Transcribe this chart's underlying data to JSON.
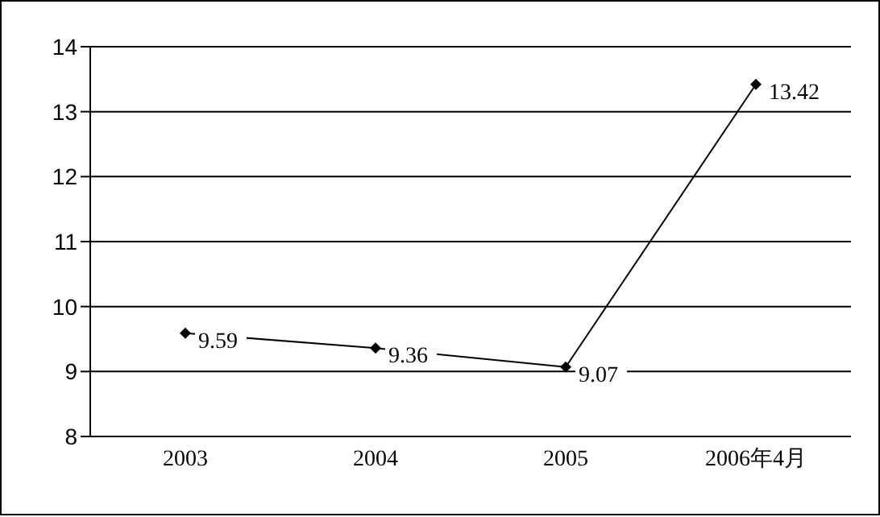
{
  "chart_data": {
    "type": "line",
    "categories": [
      "2003",
      "2004",
      "2005",
      "2006年4月"
    ],
    "series": [
      {
        "color": "#000000",
        "values": [
          9.59,
          9.36,
          9.07,
          13.42
        ]
      }
    ],
    "ylim": [
      8,
      14
    ],
    "yticks": [
      8,
      9,
      10,
      11,
      12,
      13,
      14
    ],
    "grid": "y",
    "marker": "diamond",
    "line_style": "solid",
    "data_labels": true
  }
}
